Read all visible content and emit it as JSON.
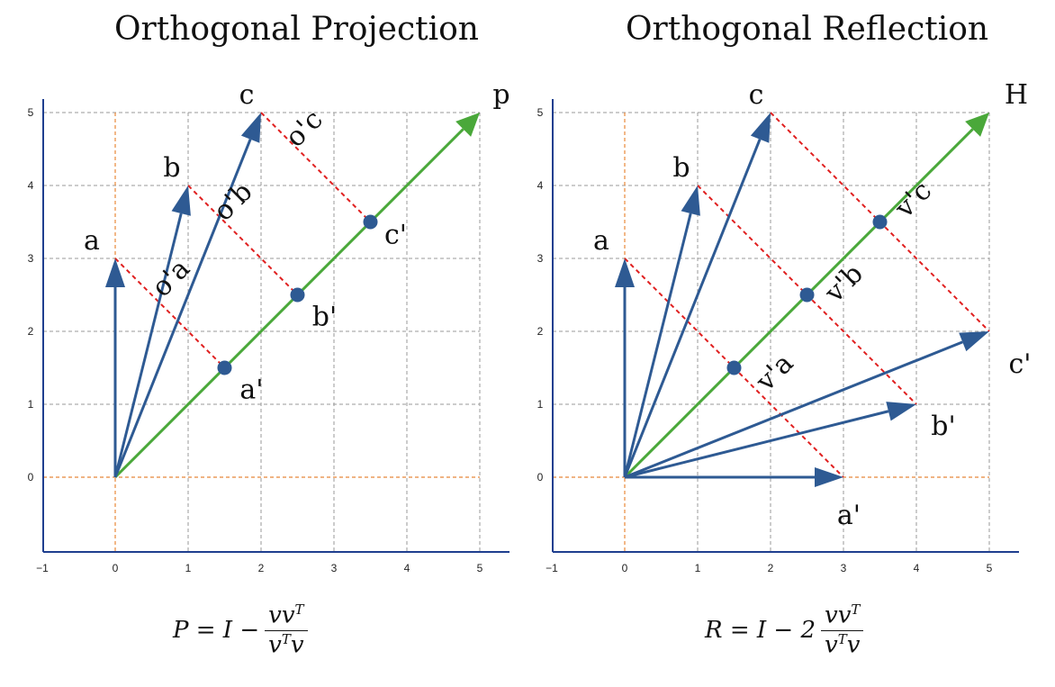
{
  "panels": [
    {
      "id": "projection",
      "title": "Orthogonal Projection",
      "line_label": "p",
      "formula": {
        "lhs": "P = I − ",
        "num": "vv",
        "num_sup": "T",
        "den": "v",
        "den_sup": "T",
        "den_tail": "v"
      },
      "ticks_x": [
        "−1",
        "0",
        "1",
        "2",
        "3",
        "4",
        "5"
      ],
      "ticks_y": [
        "0",
        "1",
        "2",
        "3",
        "4",
        "5"
      ],
      "vectors": [
        {
          "name": "a",
          "to": [
            0,
            3
          ]
        },
        {
          "name": "b",
          "to": [
            1,
            4
          ]
        },
        {
          "name": "c",
          "to": [
            2,
            5
          ]
        }
      ],
      "projections": [
        {
          "name": "a'",
          "from": [
            0,
            3
          ],
          "to": [
            1.5,
            1.5
          ],
          "residual": "o'a"
        },
        {
          "name": "b'",
          "from": [
            1,
            4
          ],
          "to": [
            2.5,
            2.5
          ],
          "residual": "o'b"
        },
        {
          "name": "c'",
          "from": [
            2,
            5
          ],
          "to": [
            3.5,
            3.5
          ],
          "residual": "o'c"
        }
      ]
    },
    {
      "id": "reflection",
      "title": "Orthogonal Reflection",
      "line_label": "H",
      "formula": {
        "lhs": "R = I − 2",
        "num": "vv",
        "num_sup": "T",
        "den": "v",
        "den_sup": "T",
        "den_tail": "v"
      },
      "ticks_x": [
        "−1",
        "0",
        "1",
        "2",
        "3",
        "4",
        "5"
      ],
      "ticks_y": [
        "0",
        "1",
        "2",
        "3",
        "4",
        "5"
      ],
      "vectors": [
        {
          "name": "a",
          "to": [
            0,
            3
          ]
        },
        {
          "name": "b",
          "to": [
            1,
            4
          ]
        },
        {
          "name": "c",
          "to": [
            2,
            5
          ]
        }
      ],
      "reflections": [
        {
          "name": "a'",
          "from": [
            0,
            3
          ],
          "to": [
            3,
            0
          ],
          "mid": [
            1.5,
            1.5
          ],
          "label": "v'a"
        },
        {
          "name": "b'",
          "from": [
            1,
            4
          ],
          "to": [
            4,
            1
          ],
          "mid": [
            2.5,
            2.5
          ],
          "label": "v'b"
        },
        {
          "name": "c'",
          "from": [
            2,
            5
          ],
          "to": [
            5,
            2
          ],
          "mid": [
            3.5,
            3.5
          ],
          "label": "v'c"
        }
      ]
    }
  ],
  "colors": {
    "vector": "#2e5a93",
    "line": "#4aa83a",
    "dashed": "#e02020",
    "axis_dashed": "#e8883a",
    "grid": "#9a9a9a",
    "axis": "#1f3f8f",
    "point": "#2e5a93"
  }
}
